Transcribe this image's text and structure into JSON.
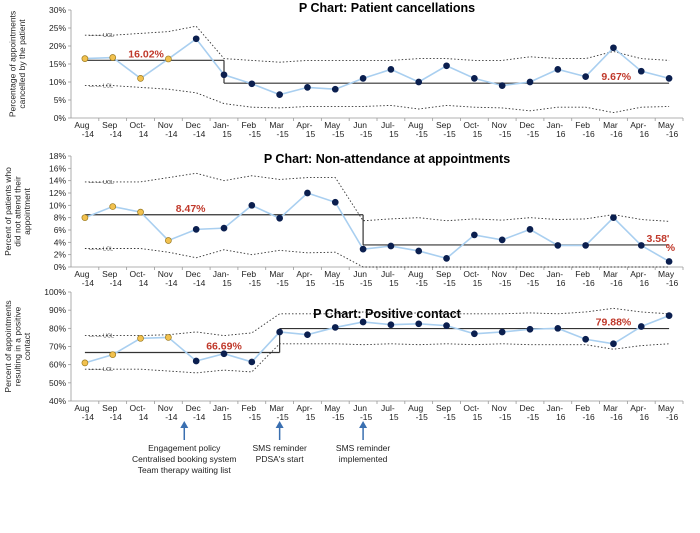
{
  "months": [
    "Aug\n-14",
    "Sep\n-14",
    "Oct-\n14",
    "Nov\n-14",
    "Dec\n-14",
    "Jan-\n15",
    "Feb\n-15",
    "Mar\n-15",
    "Apr-\n15",
    "May\n-15",
    "Jun\n-15",
    "Jul-\n15",
    "Aug\n-15",
    "Sep\n-15",
    "Oct-\n15",
    "Nov\n-15",
    "Dec\n-15",
    "Jan-\n16",
    "Feb\n-16",
    "Mar\n-16",
    "Apr-\n16",
    "May\n-16"
  ],
  "colors": {
    "line": "#a9cff0",
    "pre_point": "#f2c14e",
    "pre_edge": "#9a7a20",
    "post_point": "#0b1f4f",
    "center": "#333333",
    "limits": "#333333",
    "annotation": "#c0392b",
    "arrow": "#3a6fb0"
  },
  "chart_data": [
    {
      "type": "line",
      "title": "P Chart: Patient cancellations",
      "ylabel": "Percentage of appointments cancelled by the patient",
      "ylim": [
        0,
        30
      ],
      "yticks": [
        0,
        5,
        10,
        15,
        20,
        25,
        30
      ],
      "ytick_labels": [
        "0%",
        "5%",
        "10%",
        "15%",
        "20%",
        "25%",
        "30%"
      ],
      "values": [
        16.5,
        16.8,
        11.0,
        16.4,
        22.0,
        12.0,
        9.5,
        6.5,
        8.5,
        8.0,
        11.0,
        13.5,
        10.0,
        14.5,
        11.0,
        9.0,
        10.0,
        13.5,
        11.5,
        19.5,
        13.0,
        11.0
      ],
      "highlight_count": 4,
      "center": [
        {
          "from": 0,
          "to": 5,
          "value": 16.02
        },
        {
          "from": 5,
          "to": 21,
          "value": 9.67
        }
      ],
      "ucl": [
        23.0,
        23.0,
        23.5,
        24.0,
        25.5,
        16.5,
        16.0,
        15.5,
        16.0,
        16.0,
        16.0,
        16.0,
        16.5,
        16.5,
        16.0,
        16.0,
        17.0,
        16.5,
        16.5,
        18.5,
        16.5,
        16.0
      ],
      "lcl": [
        9.0,
        9.0,
        8.5,
        8.0,
        7.0,
        4.0,
        3.0,
        2.8,
        3.2,
        3.2,
        3.2,
        3.5,
        2.5,
        3.5,
        3.0,
        2.8,
        2.0,
        3.0,
        3.0,
        1.5,
        3.0,
        3.2
      ],
      "annotations": [
        {
          "text": "16.02%",
          "x": 2.2,
          "y": 16.02
        },
        {
          "text": "9.67%",
          "x": 19.1,
          "y": 9.67
        }
      ],
      "limit_labels": {
        "ucl": "UCL",
        "lcl": "LCL"
      }
    },
    {
      "type": "line",
      "title": "P Chart: Non-attendance at appointments",
      "ylabel": "Percent of patients who did not attend their appointment",
      "ylim": [
        0,
        18
      ],
      "yticks": [
        0,
        2,
        4,
        6,
        8,
        10,
        12,
        14,
        16,
        18
      ],
      "ytick_labels": [
        "0%",
        "2%",
        "4%",
        "6%",
        "8%",
        "10%",
        "12%",
        "14%",
        "16%",
        "18%"
      ],
      "values": [
        8.0,
        9.8,
        8.9,
        4.3,
        6.1,
        6.3,
        10.0,
        7.9,
        12.0,
        10.5,
        2.9,
        3.4,
        2.6,
        1.4,
        5.2,
        4.4,
        6.1,
        3.5,
        3.5,
        8.0,
        3.5,
        0.9
      ],
      "highlight_count": 4,
      "center": [
        {
          "from": 0,
          "to": 10,
          "value": 8.47
        },
        {
          "from": 10,
          "to": 21,
          "value": 3.58
        }
      ],
      "ucl": [
        13.8,
        13.8,
        13.8,
        14.5,
        15.2,
        14.0,
        14.8,
        14.2,
        14.5,
        14.5,
        7.5,
        7.8,
        8.0,
        7.5,
        7.8,
        7.6,
        8.0,
        7.7,
        7.8,
        8.5,
        7.7,
        7.4
      ],
      "lcl": [
        3.0,
        3.0,
        3.0,
        2.4,
        1.5,
        2.8,
        2.0,
        2.7,
        2.3,
        2.4,
        0.0,
        0.0,
        0.0,
        0.0,
        0.0,
        0.0,
        0.0,
        0.0,
        0.0,
        0.0,
        0.0,
        0.0
      ],
      "annotations": [
        {
          "text": "8.47%",
          "x": 3.8,
          "y": 8.47
        },
        {
          "text": "3.58'",
          "x": 20.6,
          "y": 3.58
        },
        {
          "text": "%",
          "x": 21.05,
          "y": 2.1
        }
      ],
      "limit_labels": {
        "ucl": "UCL",
        "lcl": "LCL"
      }
    },
    {
      "type": "line",
      "title": "P Chart: Positive contact",
      "ylabel": "Percent of appointments resulting in a positive contact",
      "ylim": [
        40,
        100
      ],
      "yticks": [
        40,
        50,
        60,
        70,
        80,
        90,
        100
      ],
      "ytick_labels": [
        "40%",
        "50%",
        "60%",
        "70%",
        "80%",
        "90%",
        "100%"
      ],
      "values": [
        61.0,
        65.5,
        74.5,
        75.0,
        62.0,
        66.0,
        61.5,
        78.0,
        76.5,
        80.5,
        83.5,
        82.0,
        82.5,
        81.5,
        77.0,
        78.0,
        79.5,
        80.0,
        74.0,
        71.5,
        81.0,
        87.0
      ],
      "highlight_count": 4,
      "center": [
        {
          "from": 0,
          "to": 7,
          "value": 66.69
        },
        {
          "from": 7,
          "to": 21,
          "value": 79.88
        }
      ],
      "ucl": [
        76.0,
        76.0,
        76.0,
        76.5,
        78.0,
        76.0,
        77.5,
        88.0,
        88.0,
        88.0,
        89.0,
        88.0,
        88.5,
        88.0,
        88.0,
        88.0,
        88.5,
        88.0,
        89.0,
        91.0,
        89.0,
        88.0
      ],
      "lcl": [
        57.5,
        57.5,
        57.5,
        56.5,
        55.5,
        57.0,
        56.0,
        71.5,
        71.5,
        71.5,
        71.0,
        71.5,
        71.0,
        71.5,
        71.0,
        71.5,
        71.0,
        71.0,
        71.0,
        68.5,
        70.5,
        71.5
      ],
      "annotations": [
        {
          "text": "66.69%",
          "x": 5.0,
          "y": 66.69
        },
        {
          "text": "79.88%",
          "x": 19.0,
          "y": 79.88
        }
      ],
      "limit_labels": {
        "ucl": "UCL",
        "lcl": "LCL"
      },
      "events": [
        {
          "index": 4,
          "lines": [
            "Engagement  policy",
            "Centralised booking system",
            "Team therapy waiting list"
          ]
        },
        {
          "index": 7,
          "lines": [
            "SMS reminder",
            "PDSA's start"
          ]
        },
        {
          "index": 10,
          "lines": [
            "SMS reminder",
            "implemented"
          ]
        }
      ]
    }
  ]
}
